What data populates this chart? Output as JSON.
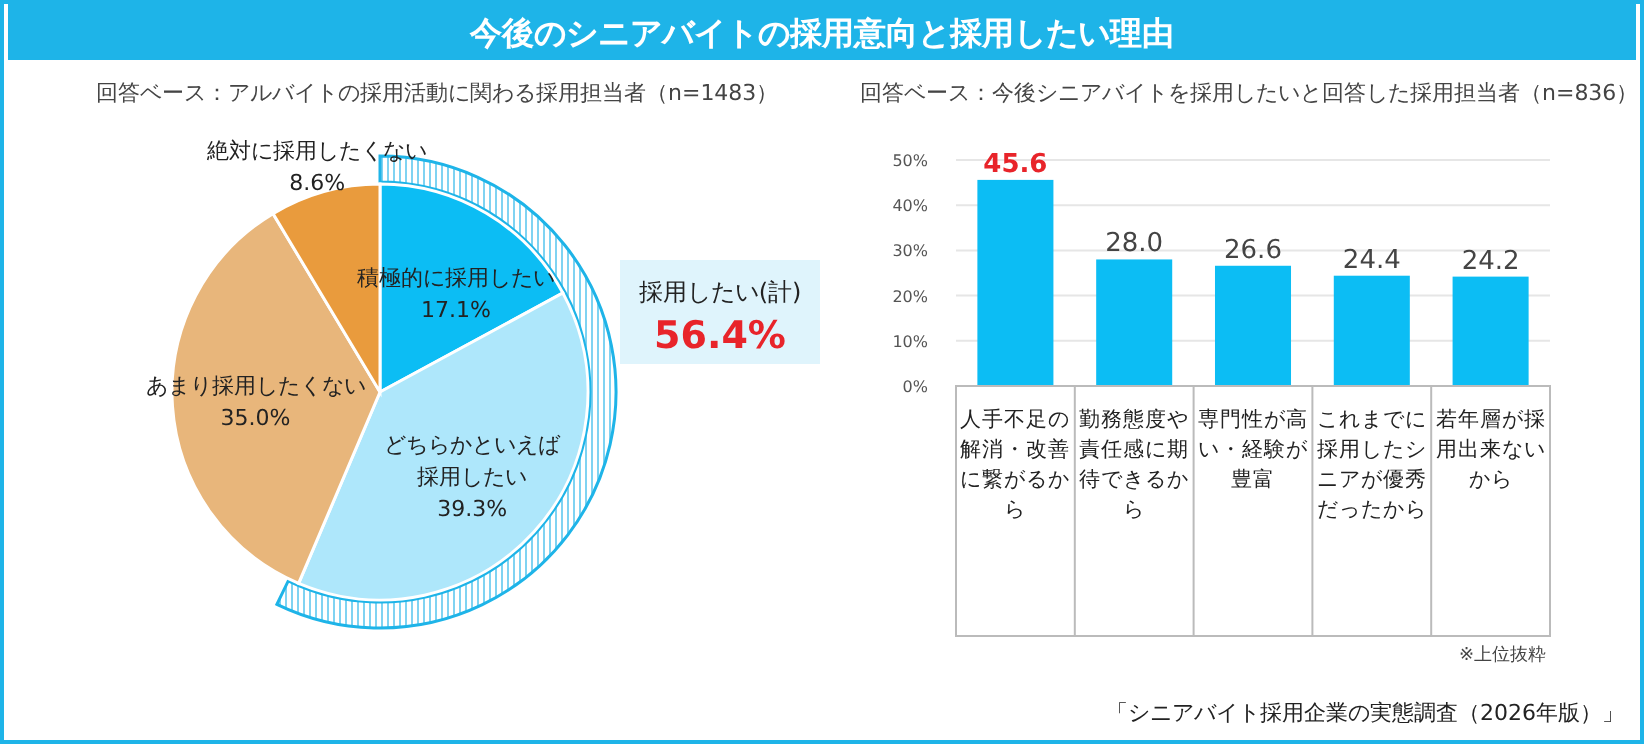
{
  "chart_data": [
    {
      "type": "pie",
      "title": "今後のシニアバイトの採用意向と採用したい理由",
      "subtitle": "回答ベース：アルバイトの採用活動に関わる採用担当者（n=1483）",
      "categories": [
        "積極的に採用したい",
        "どちらかといえば採用したい",
        "あまり採用したくない",
        "絶対に採用したくない"
      ],
      "values": [
        17.1,
        39.3,
        35.0,
        8.6
      ],
      "colors": [
        "#0cbdf4",
        "#aee7fb",
        "#e8b67b",
        "#e99b3d"
      ],
      "data_labels": true,
      "value_labels": [
        "17.1%",
        "39.3%",
        "35.0%",
        "8.6%"
      ],
      "annotations": [
        "採用したい(計)",
        "56.4%"
      ]
    },
    {
      "type": "bar",
      "subtitle": "回答ベース：今後シニアバイトを採用したいと回答した採用担当者（n=836）",
      "categories": [
        "人手不足の解消・改善に繋がるから",
        "勤務態度や責任感に期待できるから",
        "専門性が高い・経験が豊富",
        "これまでに採用したシニアが優秀だったから",
        "若年層が採用出来ないから"
      ],
      "values": [
        45.6,
        28.0,
        26.6,
        24.4,
        24.2
      ],
      "color": "#0cbdf4",
      "ylim": [
        0,
        50
      ],
      "yticks": [
        {
          "value": 0,
          "label": "0%"
        },
        {
          "value": 10,
          "label": "10%"
        },
        {
          "value": 20,
          "label": "20%"
        },
        {
          "value": 30,
          "label": "30%"
        },
        {
          "value": 40,
          "label": "40%"
        },
        {
          "value": 50,
          "label": "50%"
        }
      ],
      "grid": "y",
      "data_labels": true,
      "value_labels": [
        "45.6",
        "28.0",
        "26.6",
        "24.4",
        "24.2"
      ],
      "annotations": [
        "※上位抜粋",
        "「シニアバイト採用企業の実態調査（2026年版）」"
      ]
    }
  ]
}
